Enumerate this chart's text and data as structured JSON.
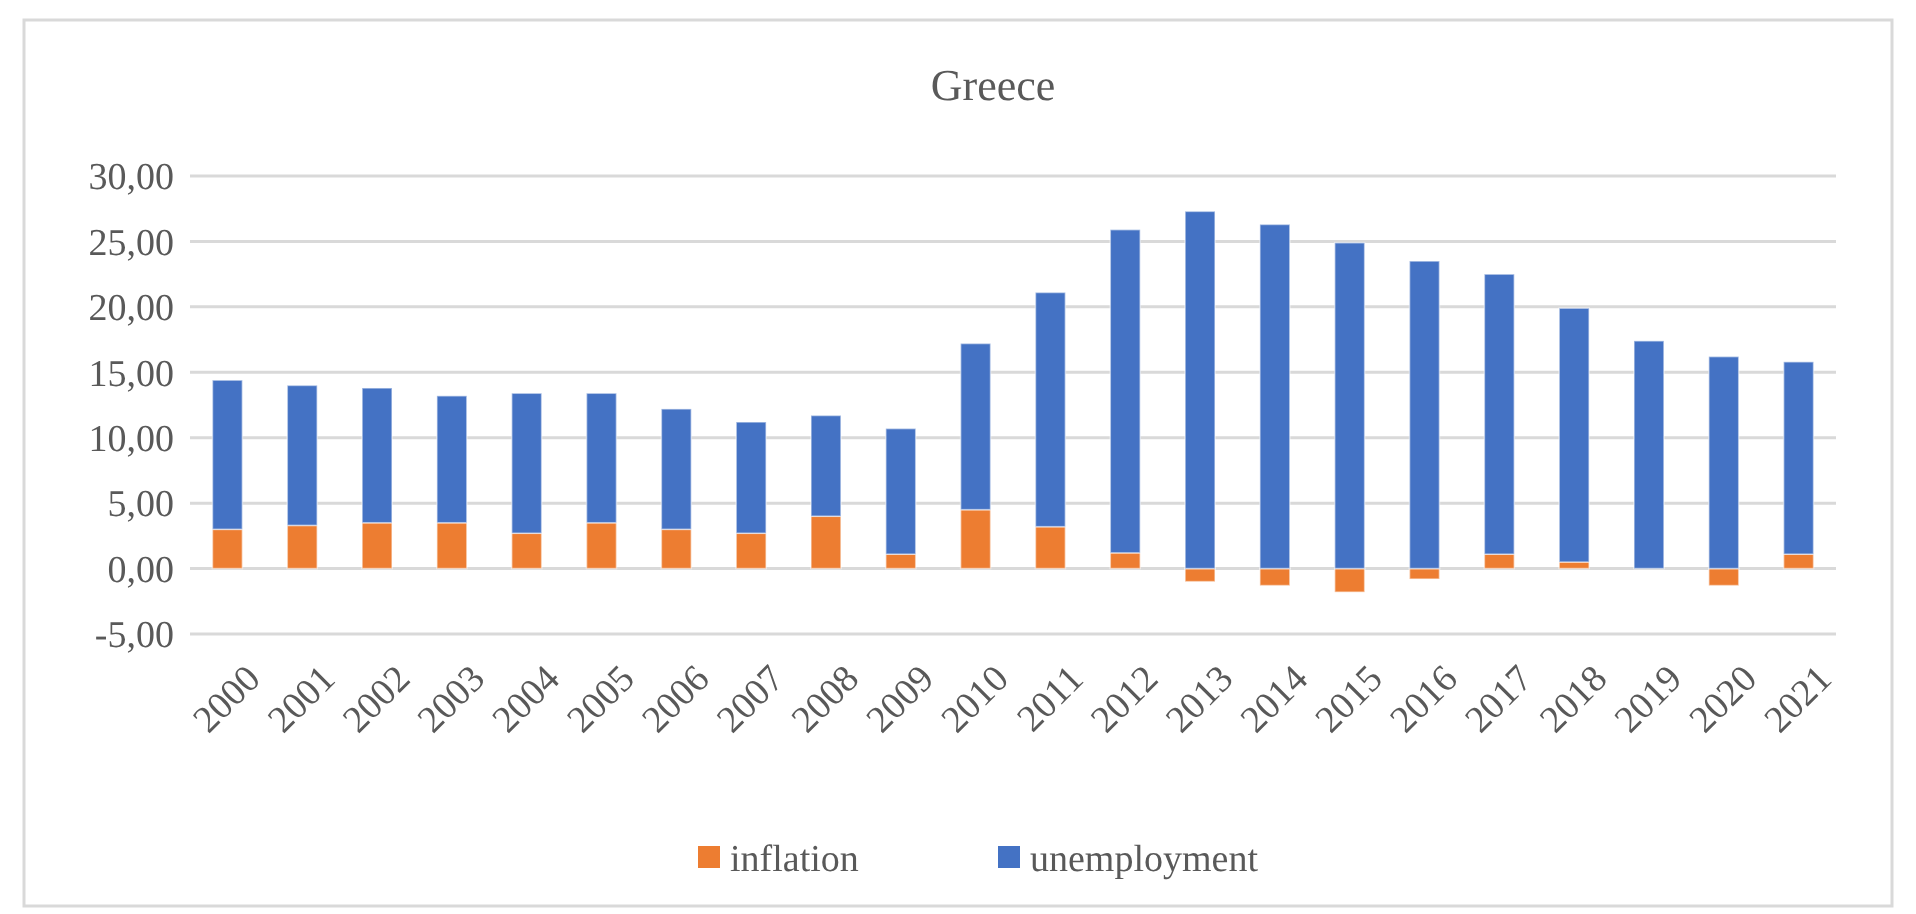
{
  "chart_data": {
    "type": "bar",
    "title": "Greece",
    "stacked": true,
    "categories": [
      "2000",
      "2001",
      "2002",
      "2003",
      "2004",
      "2005",
      "2006",
      "2007",
      "2008",
      "2009",
      "2010",
      "2011",
      "2012",
      "2013",
      "2014",
      "2015",
      "2016",
      "2017",
      "2018",
      "2019",
      "2020",
      "2021"
    ],
    "series": [
      {
        "name": "inflation",
        "color": "#ed7d31",
        "values": [
          3.0,
          3.3,
          3.5,
          3.5,
          2.7,
          3.5,
          3.0,
          2.7,
          4.0,
          1.1,
          4.5,
          3.2,
          1.2,
          -1.0,
          -1.3,
          -1.8,
          -0.8,
          1.1,
          0.5,
          0,
          -1.3,
          1.1
        ]
      },
      {
        "name": "unemployment",
        "color": "#4472c4",
        "values": [
          11.4,
          10.7,
          10.3,
          9.7,
          10.7,
          9.9,
          9.2,
          8.5,
          7.7,
          9.6,
          12.7,
          17.9,
          24.7,
          27.3,
          26.3,
          24.9,
          23.5,
          21.4,
          19.4,
          17.4,
          16.2,
          14.7
        ]
      }
    ],
    "ylim": [
      -5,
      30
    ],
    "yticks": [
      {
        "value": -5,
        "label": "-5,00"
      },
      {
        "value": 0,
        "label": "0,00"
      },
      {
        "value": 5,
        "label": "5,00"
      },
      {
        "value": 10,
        "label": "10,00"
      },
      {
        "value": 15,
        "label": "15,00"
      },
      {
        "value": 20,
        "label": "20,00"
      },
      {
        "value": 25,
        "label": "25,00"
      },
      {
        "value": 30,
        "label": "30,00"
      }
    ],
    "grid": "y",
    "legend": "bottom"
  }
}
